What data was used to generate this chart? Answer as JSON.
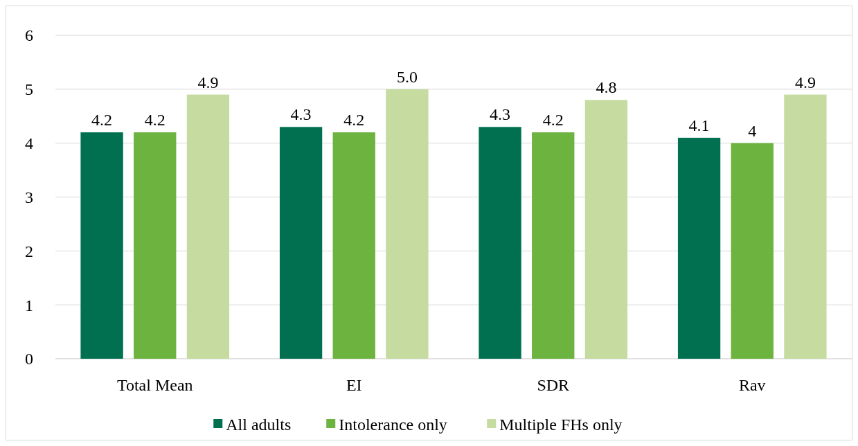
{
  "chart_data": {
    "type": "bar",
    "categories": [
      "Total Mean",
      "EI",
      "SDR",
      "Rav"
    ],
    "series": [
      {
        "name": "All adults",
        "color": "#007050",
        "values": [
          4.2,
          4.3,
          4.3,
          4.1
        ],
        "value_labels": [
          "4.2",
          "4.3",
          "4.3",
          "4.1"
        ]
      },
      {
        "name": "Intolerance only",
        "color": "#6db33f",
        "values": [
          4.2,
          4.2,
          4.2,
          4
        ],
        "value_labels": [
          "4.2",
          "4.2",
          "4.2",
          "4"
        ]
      },
      {
        "name": "Multiple FHs only",
        "color": "#c5dba0",
        "values": [
          4.9,
          5.0,
          4.8,
          4.9
        ],
        "value_labels": [
          "4.9",
          "5.0",
          "4.8",
          "4.9"
        ]
      }
    ],
    "ylim": [
      0,
      6
    ],
    "yticks": [
      0,
      1,
      2,
      3,
      4,
      5,
      6
    ],
    "grid": "y",
    "legend": "bottom"
  }
}
